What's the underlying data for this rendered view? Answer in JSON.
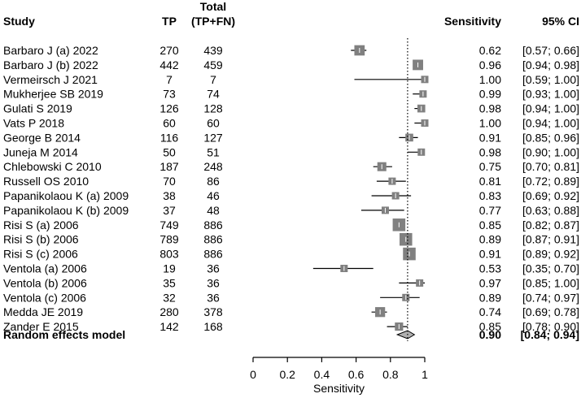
{
  "chart_data": {
    "type": "forest",
    "headers": {
      "study": "Study",
      "tp": "TP",
      "total_line1": "Total",
      "total_line2": "(TP+FN)",
      "sensitivity": "Sensitivity",
      "ci": "95% CI"
    },
    "studies": [
      {
        "study": "Barbaro J (a) 2022",
        "tp": "270",
        "total": "439",
        "est": 0.62,
        "lo": 0.57,
        "hi": 0.66,
        "sens": "0.62",
        "ci": "[0.57; 0.66]"
      },
      {
        "study": "Barbaro J (b) 2022",
        "tp": "442",
        "total": "459",
        "est": 0.96,
        "lo": 0.94,
        "hi": 0.98,
        "sens": "0.96",
        "ci": "[0.94; 0.98]"
      },
      {
        "study": "Vermeirsch J 2021",
        "tp": "7",
        "total": "7",
        "est": 1.0,
        "lo": 0.59,
        "hi": 1.0,
        "sens": "1.00",
        "ci": "[0.59; 1.00]"
      },
      {
        "study": "Mukherjee SB 2019",
        "tp": "73",
        "total": "74",
        "est": 0.99,
        "lo": 0.93,
        "hi": 1.0,
        "sens": "0.99",
        "ci": "[0.93; 1.00]"
      },
      {
        "study": "Gulati S 2019",
        "tp": "126",
        "total": "128",
        "est": 0.98,
        "lo": 0.94,
        "hi": 1.0,
        "sens": "0.98",
        "ci": "[0.94; 1.00]"
      },
      {
        "study": "Vats P 2018",
        "tp": "60",
        "total": "60",
        "est": 1.0,
        "lo": 0.94,
        "hi": 1.0,
        "sens": "1.00",
        "ci": "[0.94; 1.00]"
      },
      {
        "study": "George B 2014",
        "tp": "116",
        "total": "127",
        "est": 0.91,
        "lo": 0.85,
        "hi": 0.96,
        "sens": "0.91",
        "ci": "[0.85; 0.96]"
      },
      {
        "study": "Juneja M 2014",
        "tp": "50",
        "total": "51",
        "est": 0.98,
        "lo": 0.9,
        "hi": 1.0,
        "sens": "0.98",
        "ci": "[0.90; 1.00]"
      },
      {
        "study": "Chlebowski C 2010",
        "tp": "187",
        "total": "248",
        "est": 0.75,
        "lo": 0.7,
        "hi": 0.81,
        "sens": "0.75",
        "ci": "[0.70; 0.81]"
      },
      {
        "study": "Russell OS 2010",
        "tp": "70",
        "total": "86",
        "est": 0.81,
        "lo": 0.72,
        "hi": 0.89,
        "sens": "0.81",
        "ci": "[0.72; 0.89]"
      },
      {
        "study": "Papanikolaou K (a) 2009",
        "tp": "38",
        "total": "46",
        "est": 0.83,
        "lo": 0.69,
        "hi": 0.92,
        "sens": "0.83",
        "ci": "[0.69; 0.92]"
      },
      {
        "study": "Papanikolaou K (b) 2009",
        "tp": "37",
        "total": "48",
        "est": 0.77,
        "lo": 0.63,
        "hi": 0.88,
        "sens": "0.77",
        "ci": "[0.63; 0.88]"
      },
      {
        "study": "Risi S (a) 2006",
        "tp": "749",
        "total": "886",
        "est": 0.85,
        "lo": 0.82,
        "hi": 0.87,
        "sens": "0.85",
        "ci": "[0.82; 0.87]"
      },
      {
        "study": "Risi S (b) 2006",
        "tp": "789",
        "total": "886",
        "est": 0.89,
        "lo": 0.87,
        "hi": 0.91,
        "sens": "0.89",
        "ci": "[0.87; 0.91]"
      },
      {
        "study": "Risi S (c) 2006",
        "tp": "803",
        "total": "886",
        "est": 0.91,
        "lo": 0.89,
        "hi": 0.92,
        "sens": "0.91",
        "ci": "[0.89; 0.92]"
      },
      {
        "study": "Ventola (a) 2006",
        "tp": "19",
        "total": "36",
        "est": 0.53,
        "lo": 0.35,
        "hi": 0.7,
        "sens": "0.53",
        "ci": "[0.35; 0.70]"
      },
      {
        "study": "Ventola (b) 2006",
        "tp": "35",
        "total": "36",
        "est": 0.97,
        "lo": 0.85,
        "hi": 1.0,
        "sens": "0.97",
        "ci": "[0.85; 1.00]"
      },
      {
        "study": "Ventola (c) 2006",
        "tp": "32",
        "total": "36",
        "est": 0.89,
        "lo": 0.74,
        "hi": 0.97,
        "sens": "0.89",
        "ci": "[0.74; 0.97]"
      },
      {
        "study": "Medda JE 2019",
        "tp": "280",
        "total": "378",
        "est": 0.74,
        "lo": 0.69,
        "hi": 0.78,
        "sens": "0.74",
        "ci": "[0.69; 0.78]"
      },
      {
        "study": "Zander E 2015",
        "tp": "142",
        "total": "168",
        "est": 0.85,
        "lo": 0.78,
        "hi": 0.9,
        "sens": "0.85",
        "ci": "[0.78; 0.90]"
      }
    ],
    "pooled": {
      "label": "Random effects model",
      "est": 0.9,
      "lo": 0.84,
      "hi": 0.94,
      "sens": "0.90",
      "ci": "[0.84; 0.94]"
    },
    "x_axis": {
      "label": "Sensitivity",
      "xlim": [
        0,
        1
      ],
      "ticks": [
        "0",
        "0.2",
        "0.4",
        "0.6",
        "0.8",
        "1"
      ]
    },
    "reference_line": 0.9,
    "colors": {
      "square": "#808080",
      "diamond": "#b0b0b0",
      "line": "#000000"
    }
  }
}
